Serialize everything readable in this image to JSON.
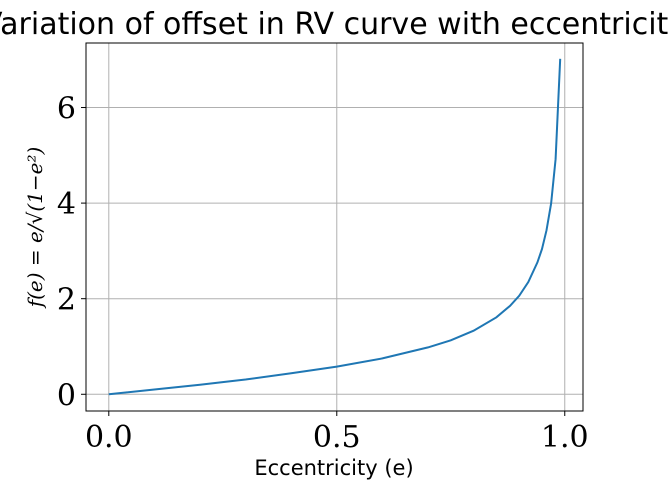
{
  "chart_data": {
    "type": "line",
    "title": "Variation of offset in RV curve with eccentricity",
    "xlabel": "Eccentricity (e)",
    "ylabel": "f(e) = e/√(1−e²)",
    "xlim": [
      -0.05,
      1.04
    ],
    "ylim": [
      -0.35,
      7.35
    ],
    "xticks": [
      0.0,
      0.5,
      1.0
    ],
    "xtick_labels": [
      "0.0",
      "0.5",
      "1.0"
    ],
    "yticks": [
      0,
      2,
      4,
      6
    ],
    "ytick_labels": [
      "0",
      "2",
      "4",
      "6"
    ],
    "grid": true,
    "legend": "none",
    "colors": {
      "line": "#1f77b4"
    },
    "series": [
      {
        "x": [
          0.0,
          0.1,
          0.2,
          0.3,
          0.4,
          0.5,
          0.6,
          0.7,
          0.75,
          0.8,
          0.85,
          0.88,
          0.9,
          0.92,
          0.94,
          0.95,
          0.96,
          0.97,
          0.98,
          0.99
        ],
        "y": [
          0.0,
          0.1,
          0.2,
          0.31,
          0.44,
          0.58,
          0.75,
          0.98,
          1.13,
          1.33,
          1.61,
          1.85,
          2.06,
          2.35,
          2.76,
          3.04,
          3.43,
          3.99,
          4.92,
          7.02
        ]
      }
    ]
  }
}
